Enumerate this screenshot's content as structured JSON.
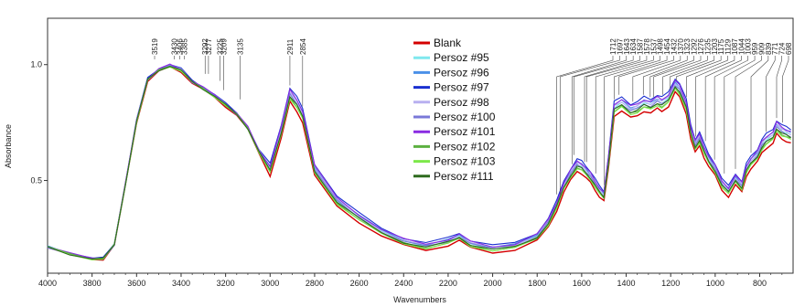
{
  "chart_data": {
    "type": "line",
    "xlabel": "Wavenumbers",
    "ylabel": "Absorbance",
    "xlim": [
      4000,
      650
    ],
    "ylim": [
      0.1,
      1.2
    ],
    "x_ticks": [
      4000,
      3800,
      3600,
      3400,
      3200,
      3000,
      2800,
      2600,
      2400,
      2200,
      2000,
      1800,
      1600,
      1400,
      1200,
      1000,
      800
    ],
    "y_ticks": [
      0.5,
      1.0
    ],
    "y_tick_labels": [
      "0.5",
      "1.0"
    ],
    "legend_position": "center",
    "annotations": [
      "3519",
      "3430",
      "3406",
      "3385",
      "3292",
      "3277",
      "3225",
      "3209",
      "3135",
      "2911",
      "2854",
      "1712",
      "1697",
      "1643",
      "1634",
      "1587",
      "1578",
      "1537",
      "1498",
      "1454",
      "1432",
      "1370",
      "1323",
      "1292",
      "1276",
      "1235",
      "1203",
      "1175",
      "1129",
      "1087",
      "1044",
      "1003",
      "959",
      "909",
      "839",
      "771",
      "724",
      "698"
    ],
    "series": [
      {
        "name": "Blank",
        "color": "#d40000",
        "offset": 0.0
      },
      {
        "name": "Persoz #95",
        "color": "#7fe8ee",
        "offset": 0.035
      },
      {
        "name": "Persoz #96",
        "color": "#4a90e8",
        "offset": 0.045
      },
      {
        "name": "Persoz #97",
        "color": "#1a2fd0",
        "offset": 0.06
      },
      {
        "name": "Persoz #98",
        "color": "#b8b0f0",
        "offset": 0.04
      },
      {
        "name": "Persoz #100",
        "color": "#7a78d8",
        "offset": 0.03
      },
      {
        "name": "Persoz #101",
        "color": "#8a2be2",
        "offset": 0.05
      },
      {
        "name": "Persoz #102",
        "color": "#5cb040",
        "offset": 0.02
      },
      {
        "name": "Persoz #103",
        "color": "#7de84a",
        "offset": 0.015
      },
      {
        "name": "Persoz #111",
        "color": "#2e6b1e",
        "offset": 0.025
      }
    ],
    "base_x": [
      4000,
      3900,
      3800,
      3750,
      3700,
      3650,
      3600,
      3550,
      3500,
      3450,
      3400,
      3350,
      3300,
      3250,
      3200,
      3150,
      3100,
      3050,
      3000,
      2950,
      2911,
      2880,
      2854,
      2800,
      2700,
      2600,
      2500,
      2400,
      2300,
      2200,
      2150,
      2100,
      2000,
      1900,
      1800,
      1750,
      1712,
      1680,
      1650,
      1620,
      1600,
      1580,
      1560,
      1540,
      1520,
      1500,
      1480,
      1454,
      1420,
      1380,
      1350,
      1320,
      1290,
      1260,
      1240,
      1210,
      1180,
      1160,
      1130,
      1110,
      1090,
      1070,
      1050,
      1030,
      1000,
      970,
      940,
      909,
      880,
      860,
      840,
      810,
      790,
      771,
      740,
      724,
      700,
      680,
      660
    ],
    "base_y": [
      0.21,
      0.18,
      0.16,
      0.16,
      0.22,
      0.48,
      0.75,
      0.93,
      0.97,
      0.99,
      0.97,
      0.92,
      0.89,
      0.86,
      0.82,
      0.78,
      0.72,
      0.62,
      0.52,
      0.68,
      0.84,
      0.8,
      0.75,
      0.52,
      0.39,
      0.32,
      0.26,
      0.22,
      0.2,
      0.22,
      0.24,
      0.21,
      0.19,
      0.2,
      0.24,
      0.3,
      0.37,
      0.45,
      0.5,
      0.54,
      0.53,
      0.51,
      0.49,
      0.46,
      0.43,
      0.41,
      0.55,
      0.78,
      0.8,
      0.77,
      0.78,
      0.8,
      0.79,
      0.81,
      0.8,
      0.82,
      0.88,
      0.86,
      0.79,
      0.68,
      0.62,
      0.65,
      0.6,
      0.56,
      0.52,
      0.46,
      0.43,
      0.48,
      0.45,
      0.52,
      0.55,
      0.58,
      0.62,
      0.64,
      0.66,
      0.7,
      0.68,
      0.67,
      0.66
    ]
  }
}
